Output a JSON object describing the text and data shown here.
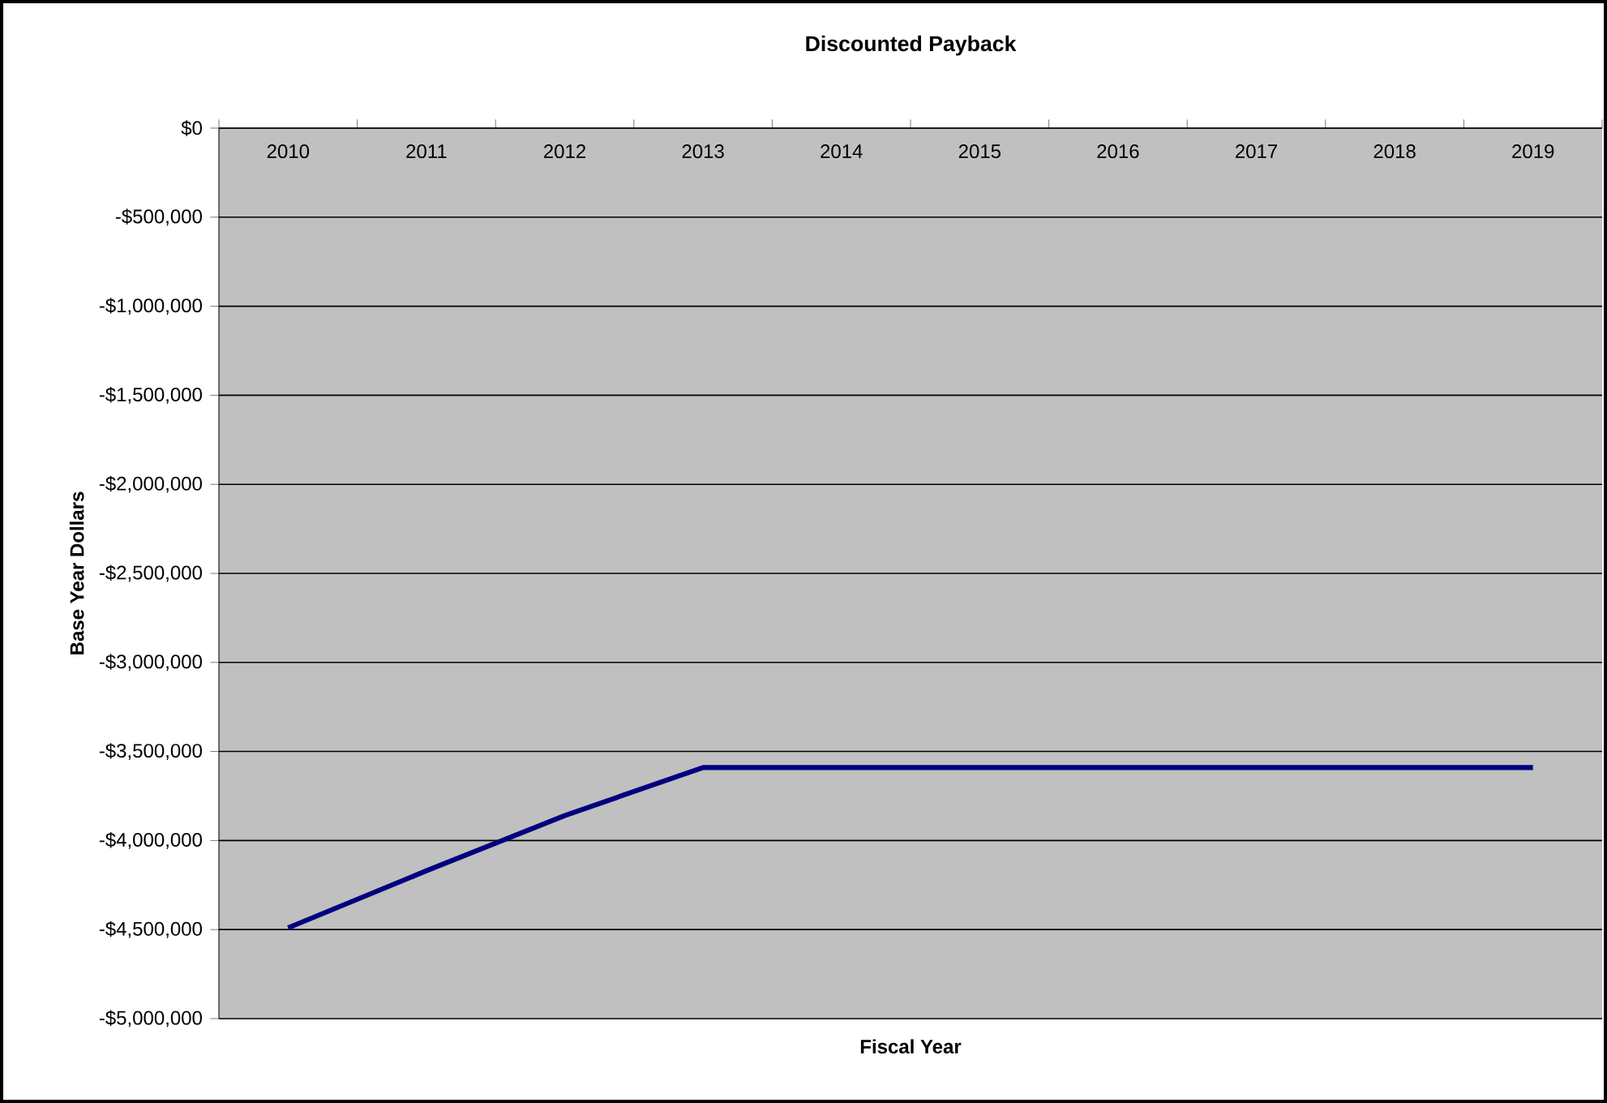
{
  "chart_data": {
    "type": "line",
    "title": "Discounted Payback",
    "xlabel": "Fiscal Year",
    "ylabel": "Base Year Dollars",
    "categories": [
      "2010",
      "2011",
      "2012",
      "2013",
      "2014",
      "2015",
      "2016",
      "2017",
      "2018",
      "2019"
    ],
    "series": [
      {
        "color": "#000080",
        "values": [
          -4490000,
          -4170000,
          -3860000,
          -3590000,
          -3590000,
          -3590000,
          -3590000,
          -3590000,
          -3590000,
          -3590000
        ]
      }
    ],
    "ylim": [
      -5000000,
      0
    ],
    "yticks": [
      {
        "value": 0,
        "label": "$0"
      },
      {
        "value": -500000,
        "label": "-$500,000"
      },
      {
        "value": -1000000,
        "label": "-$1,000,000"
      },
      {
        "value": -1500000,
        "label": "-$1,500,000"
      },
      {
        "value": -2000000,
        "label": "-$2,000,000"
      },
      {
        "value": -2500000,
        "label": "-$2,500,000"
      },
      {
        "value": -3000000,
        "label": "-$3,000,000"
      },
      {
        "value": -3500000,
        "label": "-$3,500,000"
      },
      {
        "value": -4000000,
        "label": "-$4,000,000"
      },
      {
        "value": -4500000,
        "label": "-$4,500,000"
      },
      {
        "value": -5000000,
        "label": "-$5,000,000"
      }
    ],
    "grid": "y",
    "marker": "none",
    "line_style": "solid"
  }
}
